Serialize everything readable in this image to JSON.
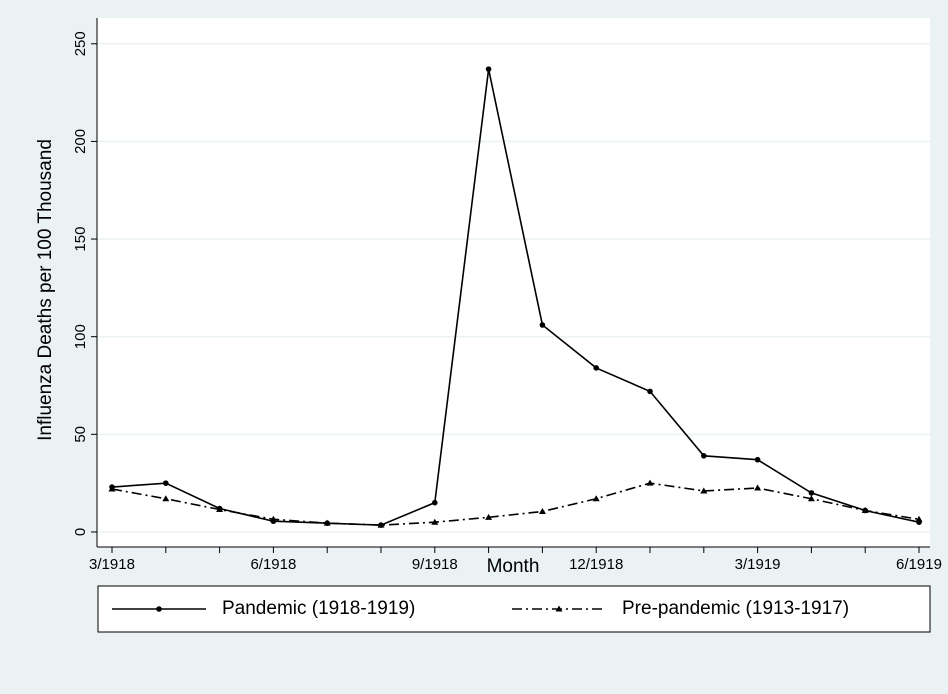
{
  "chart_data": {
    "type": "line",
    "y_label": "Influenza Deaths per 100 Thousand",
    "x_label": "Month",
    "categories": [
      "3/1918",
      null,
      null,
      "6/1918",
      null,
      null,
      "9/1918",
      null,
      null,
      "12/1918",
      null,
      null,
      "3/1919",
      null,
      null,
      "6/1919"
    ],
    "series": [
      {
        "name": "Pandemic (1918-1919)",
        "color": "#000000",
        "line_style": "solid",
        "marker": "circle",
        "values": [
          23,
          25,
          12,
          5.5,
          4.5,
          3.5,
          15,
          237,
          106,
          84,
          72,
          39,
          37,
          20,
          11,
          5
        ]
      },
      {
        "name": "Pre-pandemic (1913-1917)",
        "color": "#000000",
        "line_style": "dashdot",
        "marker": "triangle",
        "values": [
          22,
          17,
          11.5,
          6.5,
          4.5,
          3.5,
          5,
          7.5,
          10.5,
          17,
          25,
          21,
          22.5,
          17,
          11,
          6.5
        ]
      }
    ],
    "ylim": [
      -7.7,
      263.2
    ],
    "yticks": [
      0,
      50,
      100,
      150,
      200,
      250
    ],
    "grid": true,
    "legend": "bottom"
  }
}
